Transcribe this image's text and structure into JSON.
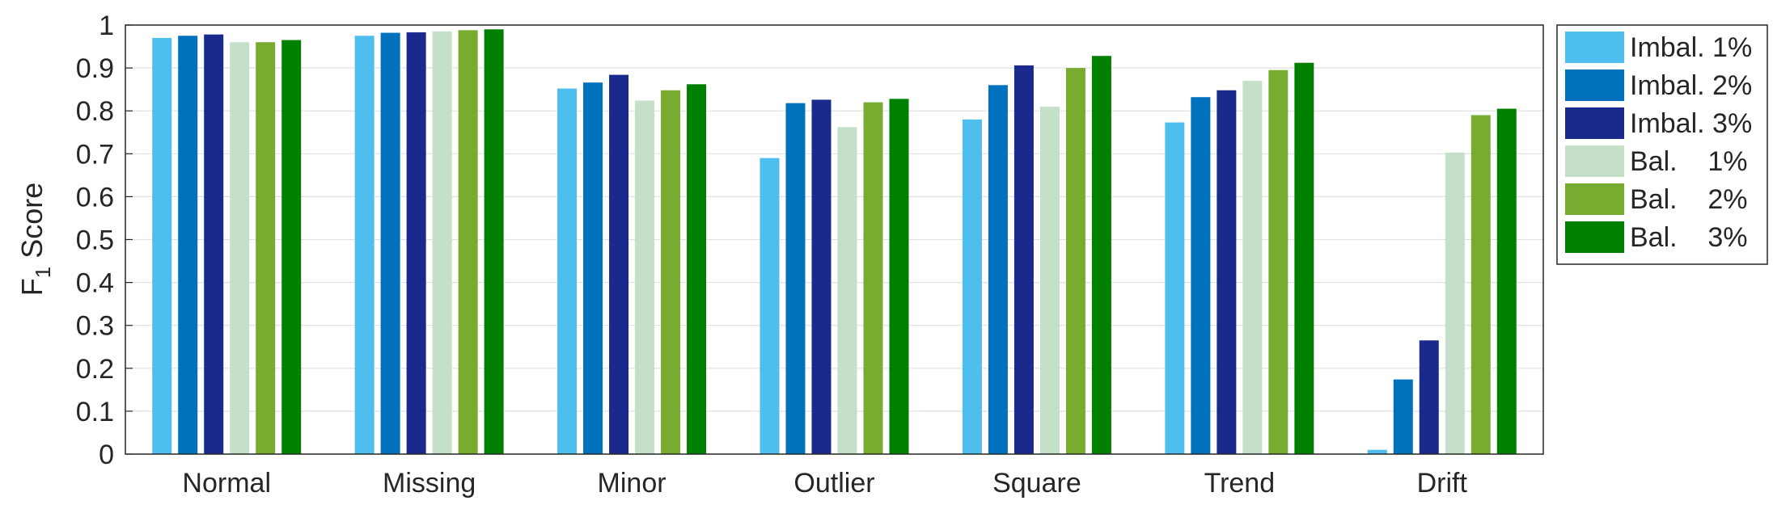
{
  "chart_data": {
    "type": "bar",
    "categories": [
      "Normal",
      "Missing",
      "Minor",
      "Outlier",
      "Square",
      "Trend",
      "Drift"
    ],
    "series": [
      {
        "name": "Imbal. 1%",
        "color": "#4DBEEE",
        "values": [
          0.97,
          0.975,
          0.852,
          0.69,
          0.78,
          0.773,
          0.01
        ]
      },
      {
        "name": "Imbal. 2%",
        "color": "#0072BD",
        "values": [
          0.975,
          0.982,
          0.866,
          0.818,
          0.86,
          0.832,
          0.174
        ]
      },
      {
        "name": "Imbal. 3%",
        "color": "#1A2A8C",
        "values": [
          0.978,
          0.983,
          0.884,
          0.826,
          0.906,
          0.848,
          0.265
        ]
      },
      {
        "name": "Bal.    1%",
        "color": "#C4E0C8",
        "values": [
          0.96,
          0.985,
          0.824,
          0.762,
          0.81,
          0.87,
          0.703
        ]
      },
      {
        "name": "Bal.    2%",
        "color": "#77AC30",
        "values": [
          0.96,
          0.988,
          0.848,
          0.82,
          0.9,
          0.895,
          0.79
        ]
      },
      {
        "name": "Bal.    3%",
        "color": "#008000",
        "values": [
          0.965,
          0.99,
          0.862,
          0.828,
          0.928,
          0.912,
          0.805
        ]
      }
    ],
    "ylabel": "F",
    "ylabel_subscript": "1",
    "ylabel_suffix": " Score",
    "ylim": [
      0,
      1
    ],
    "yticks": [
      "0",
      "0.1",
      "0.2",
      "0.3",
      "0.4",
      "0.5",
      "0.6",
      "0.7",
      "0.8",
      "0.9",
      "1"
    ],
    "grid": true,
    "legend_position": "outside-top-right"
  }
}
